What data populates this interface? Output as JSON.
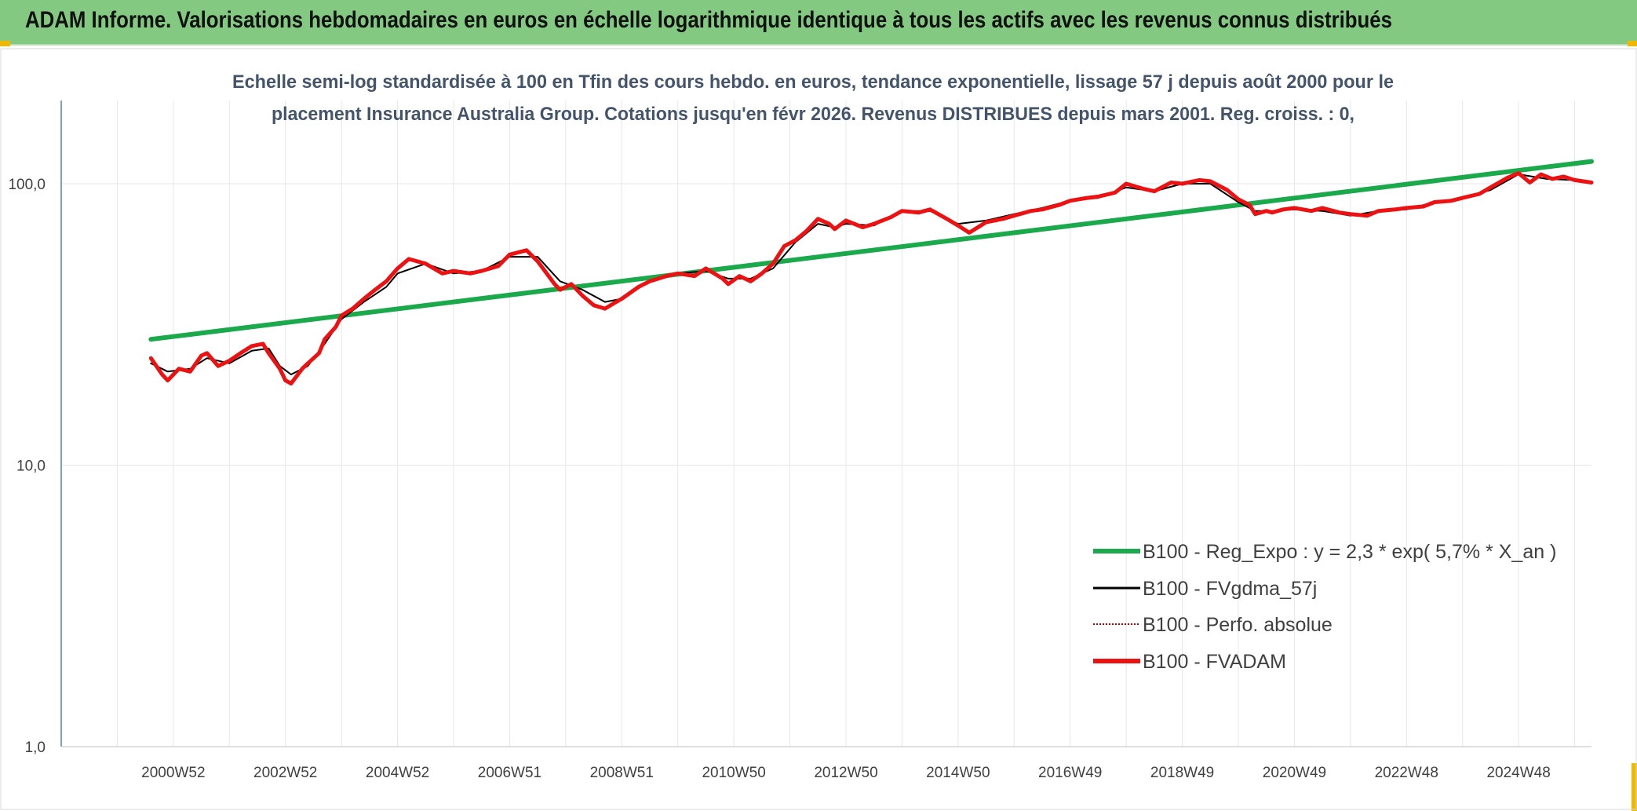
{
  "header": {
    "title": "ADAM Informe. Valorisations hebdomadaires en euros en échelle logarithmique identique à tous les actifs avec les revenus connus distribués"
  },
  "chart_data": {
    "type": "line",
    "title_lines": [
      "Echelle semi-log standardisée à 100 en Tfin des cours hebdo. en euros, tendance exponentielle, lissage 57 j depuis août 2000 pour le",
      "placement Insurance Australia Group. Cotations jusqu'en févr 2026. Revenus DISTRIBUES depuis mars 2001. Reg. croiss. : 0,"
    ],
    "y_scale": "log",
    "ylim": [
      1,
      200
    ],
    "y_ticks": [
      {
        "value": 1,
        "label": "1,0"
      },
      {
        "value": 10,
        "label": "10,0"
      },
      {
        "value": 100,
        "label": "100,0"
      }
    ],
    "xlim": [
      1999.0,
      2026.3
    ],
    "x_ticks": [
      {
        "x": 2001.0,
        "label": "2000W52"
      },
      {
        "x": 2003.0,
        "label": "2002W52"
      },
      {
        "x": 2005.0,
        "label": "2004W52"
      },
      {
        "x": 2007.0,
        "label": "2006W51"
      },
      {
        "x": 2009.0,
        "label": "2008W51"
      },
      {
        "x": 2011.0,
        "label": "2010W50"
      },
      {
        "x": 2013.0,
        "label": "2012W50"
      },
      {
        "x": 2015.0,
        "label": "2014W50"
      },
      {
        "x": 2017.0,
        "label": "2016W49"
      },
      {
        "x": 2019.0,
        "label": "2018W49"
      },
      {
        "x": 2021.0,
        "label": "2020W49"
      },
      {
        "x": 2023.0,
        "label": "2022W48"
      },
      {
        "x": 2025.0,
        "label": "2024W48"
      }
    ],
    "grid": true,
    "legend_position": "bottom-right",
    "series": [
      {
        "name": "B100 - Reg_Expo : y = 2,3 * exp( 5,7% *  X_an )",
        "color": "#1aaa4b",
        "style": "solid-thick",
        "x": [
          2000.6,
          2026.3
        ],
        "y": [
          28.0,
          120.0
        ]
      },
      {
        "name": "B100 - FVgdma_57j",
        "color": "#000000",
        "style": "solid",
        "x": [
          2000.6,
          2000.9,
          2001.3,
          2001.6,
          2002.0,
          2002.4,
          2002.7,
          2002.9,
          2003.1,
          2003.4,
          2003.7,
          2004.0,
          2004.4,
          2004.8,
          2005.0,
          2005.5,
          2006.0,
          2006.5,
          2007.0,
          2007.5,
          2007.9,
          2008.3,
          2008.7,
          2009.0,
          2009.5,
          2010.0,
          2010.5,
          2010.9,
          2011.3,
          2011.7,
          2012.1,
          2012.5,
          2012.8,
          2013.0,
          2013.5,
          2014.0,
          2014.5,
          2015.0,
          2015.5,
          2016.0,
          2016.5,
          2017.0,
          2017.5,
          2018.0,
          2018.5,
          2019.0,
          2019.5,
          2020.0,
          2020.3,
          2020.6,
          2021.0,
          2021.5,
          2022.0,
          2022.5,
          2023.0,
          2023.5,
          2024.0,
          2024.5,
          2025.0,
          2025.5,
          2026.0,
          2026.3
        ],
        "y": [
          23.0,
          21.5,
          22.0,
          24.0,
          23.0,
          25.5,
          26.0,
          22.5,
          21.0,
          22.5,
          27.0,
          33.0,
          38.0,
          43.0,
          48.0,
          52.0,
          48.0,
          49.0,
          55.0,
          55.0,
          45.0,
          42.0,
          38.0,
          39.0,
          45.0,
          48.0,
          49.0,
          46.0,
          46.0,
          50.0,
          62.0,
          72.0,
          70.0,
          72.0,
          71.0,
          80.0,
          80.0,
          72.0,
          74.0,
          78.0,
          82.0,
          87.0,
          89.0,
          97.0,
          94.0,
          100.0,
          100.0,
          86.0,
          80.0,
          80.0,
          81.0,
          80.0,
          77.0,
          80.0,
          81.0,
          86.0,
          89.0,
          95.0,
          108.0,
          104.0,
          103.0,
          101.0
        ]
      },
      {
        "name": "B100 - Perfo. absolue",
        "color": "#c00000",
        "style": "dotted",
        "x": [],
        "y": []
      },
      {
        "name": "B100 - FVADAM",
        "color": "#ee1111",
        "style": "solid-thick",
        "x": [
          2000.6,
          2000.8,
          2000.9,
          2001.1,
          2001.3,
          2001.5,
          2001.6,
          2001.8,
          2002.0,
          2002.2,
          2002.4,
          2002.6,
          2002.7,
          2002.9,
          2003.0,
          2003.1,
          2003.3,
          2003.4,
          2003.6,
          2003.7,
          2003.9,
          2004.0,
          2004.2,
          2004.4,
          2004.6,
          2004.8,
          2005.0,
          2005.2,
          2005.5,
          2005.8,
          2006.0,
          2006.3,
          2006.5,
          2006.8,
          2007.0,
          2007.3,
          2007.5,
          2007.8,
          2007.9,
          2008.1,
          2008.3,
          2008.5,
          2008.7,
          2008.9,
          2009.0,
          2009.3,
          2009.5,
          2009.8,
          2010.0,
          2010.3,
          2010.5,
          2010.8,
          2010.9,
          2011.1,
          2011.3,
          2011.5,
          2011.7,
          2011.9,
          2012.1,
          2012.3,
          2012.5,
          2012.7,
          2012.8,
          2013.0,
          2013.3,
          2013.5,
          2013.8,
          2014.0,
          2014.3,
          2014.5,
          2014.8,
          2015.0,
          2015.2,
          2015.5,
          2015.8,
          2016.0,
          2016.3,
          2016.5,
          2016.8,
          2017.0,
          2017.3,
          2017.5,
          2017.8,
          2018.0,
          2018.3,
          2018.5,
          2018.8,
          2019.0,
          2019.3,
          2019.5,
          2019.8,
          2020.0,
          2020.2,
          2020.3,
          2020.5,
          2020.6,
          2020.8,
          2021.0,
          2021.3,
          2021.5,
          2021.8,
          2022.0,
          2022.3,
          2022.5,
          2022.8,
          2023.0,
          2023.3,
          2023.5,
          2023.8,
          2024.0,
          2024.3,
          2024.5,
          2024.8,
          2025.0,
          2025.2,
          2025.4,
          2025.6,
          2025.8,
          2026.0,
          2026.3
        ],
        "y": [
          24.0,
          21.0,
          20.0,
          22.0,
          21.5,
          24.5,
          25.0,
          22.5,
          23.5,
          25.0,
          26.5,
          27.0,
          25.0,
          22.0,
          20.0,
          19.5,
          22.0,
          23.0,
          25.0,
          28.0,
          31.0,
          34.0,
          36.0,
          39.0,
          42.0,
          45.0,
          50.0,
          54.0,
          52.0,
          48.0,
          49.0,
          48.0,
          49.0,
          51.0,
          56.0,
          58.0,
          53.0,
          44.0,
          42.0,
          44.0,
          40.0,
          37.0,
          36.0,
          38.0,
          39.0,
          43.0,
          45.0,
          47.0,
          48.0,
          47.0,
          50.0,
          46.0,
          44.0,
          47.0,
          45.0,
          48.0,
          52.0,
          60.0,
          63.0,
          68.0,
          75.0,
          72.0,
          69.0,
          74.0,
          70.0,
          72.0,
          76.0,
          80.0,
          79.0,
          81.0,
          75.0,
          71.0,
          67.0,
          73.0,
          75.0,
          77.0,
          80.0,
          81.0,
          84.0,
          87.0,
          89.0,
          90.0,
          93.0,
          100.0,
          96.0,
          94.0,
          101.0,
          100.0,
          103.0,
          102.0,
          95.0,
          88.0,
          84.0,
          78.0,
          80.0,
          79.0,
          81.0,
          82.0,
          80.0,
          82.0,
          79.0,
          78.0,
          77.0,
          80.0,
          81.0,
          82.0,
          83.0,
          86.0,
          87.0,
          89.0,
          92.0,
          97.0,
          105.0,
          109.0,
          101.0,
          108.0,
          104.0,
          106.0,
          103.0,
          101.0
        ]
      }
    ]
  }
}
